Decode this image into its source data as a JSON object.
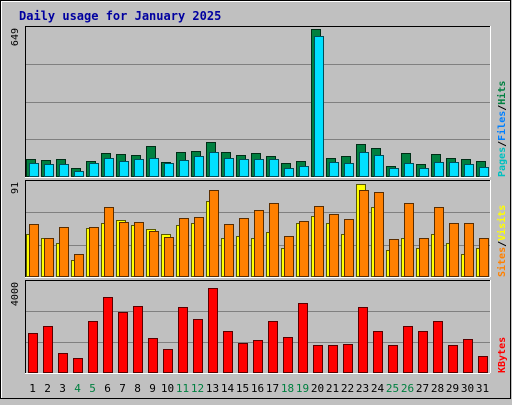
{
  "title": "Daily usage for January 2025",
  "colors": {
    "background": "#c0c0c0",
    "plot_bg": "#c0c0c0",
    "title": "#0000a0",
    "hits": "#008040",
    "files": "#00e0ff",
    "pages": "#00c0c0",
    "visits": "#ff8000",
    "sites": "#ffff00",
    "kbytes": "#ff0000",
    "grid": "#808080",
    "weekend_label": "#008040",
    "day_label": "#000000"
  },
  "panels": [
    {
      "id": "top",
      "ymax_label": "649",
      "legend": [
        {
          "text": "Hits",
          "color": "#008040"
        },
        {
          "text": "/",
          "color": "#000000"
        },
        {
          "text": "Files",
          "color": "#0080ff"
        },
        {
          "text": "/",
          "color": "#000000"
        },
        {
          "text": "Pages",
          "color": "#00c0c0"
        }
      ]
    },
    {
      "id": "middle",
      "ymax_label": "91",
      "legend": [
        {
          "text": "Visits",
          "color": "#ffff00"
        },
        {
          "text": "/",
          "color": "#000000"
        },
        {
          "text": "Sites",
          "color": "#ff8000"
        }
      ]
    },
    {
      "id": "bottom",
      "ymax_label": "4000",
      "legend": [
        {
          "text": "KBytes",
          "color": "#ff0000"
        }
      ]
    }
  ],
  "chart_data": [
    {
      "type": "bar",
      "title": "Daily usage for January 2025",
      "ylim": [
        0,
        649
      ],
      "categories": [
        "1",
        "2",
        "3",
        "4",
        "5",
        "6",
        "7",
        "8",
        "9",
        "10",
        "11",
        "12",
        "13",
        "14",
        "15",
        "16",
        "17",
        "18",
        "19",
        "20",
        "21",
        "22",
        "23",
        "24",
        "25",
        "26",
        "27",
        "28",
        "29",
        "30",
        "31"
      ],
      "weekend_days": [
        "4",
        "5",
        "11",
        "12",
        "18",
        "19",
        "25",
        "26"
      ],
      "series": [
        {
          "name": "Hits",
          "color": "#008040",
          "values": [
            80,
            75,
            78,
            40,
            72,
            105,
            100,
            95,
            136,
            65,
            108,
            112,
            155,
            110,
            95,
            105,
            92,
            60,
            72,
            649,
            85,
            90,
            145,
            125,
            48,
            105,
            55,
            100,
            85,
            78,
            72
          ]
        },
        {
          "name": "Files",
          "color": "#00e0ff",
          "values": [
            62,
            55,
            55,
            28,
            60,
            82,
            70,
            80,
            82,
            62,
            75,
            90,
            110,
            85,
            80,
            80,
            80,
            40,
            50,
            620,
            65,
            60,
            110,
            95,
            40,
            60,
            40,
            65,
            65,
            55,
            45
          ]
        }
      ]
    },
    {
      "type": "bar",
      "ylim": [
        0,
        91
      ],
      "categories": [
        "1",
        "2",
        "3",
        "4",
        "5",
        "6",
        "7",
        "8",
        "9",
        "10",
        "11",
        "12",
        "13",
        "14",
        "15",
        "16",
        "17",
        "18",
        "19",
        "20",
        "21",
        "22",
        "23",
        "24",
        "25",
        "26",
        "27",
        "28",
        "29",
        "30",
        "31"
      ],
      "series": [
        {
          "name": "Visits",
          "color": "#ffff00",
          "values": [
            42,
            38,
            33,
            16,
            47,
            52,
            55,
            50,
            46,
            42,
            50,
            52,
            74,
            38,
            40,
            38,
            44,
            28,
            52,
            59,
            52,
            42,
            90,
            68,
            26,
            38,
            28,
            42,
            33,
            22,
            28
          ]
        },
        {
          "name": "Sites",
          "color": "#ff8000",
          "values": [
            51,
            38,
            48,
            22,
            48,
            68,
            53,
            53,
            45,
            39,
            57,
            58,
            84,
            51,
            57,
            65,
            72,
            40,
            54,
            69,
            61,
            56,
            84,
            82,
            37,
            72,
            38,
            68,
            52,
            52,
            38
          ]
        }
      ]
    },
    {
      "type": "bar",
      "ylim": [
        0,
        4000
      ],
      "categories": [
        "1",
        "2",
        "3",
        "4",
        "5",
        "6",
        "7",
        "8",
        "9",
        "10",
        "11",
        "12",
        "13",
        "14",
        "15",
        "16",
        "17",
        "18",
        "19",
        "20",
        "21",
        "22",
        "23",
        "24",
        "25",
        "26",
        "27",
        "28",
        "29",
        "30",
        "31"
      ],
      "series": [
        {
          "name": "KBytes",
          "color": "#ff0000",
          "values": [
            1800,
            2100,
            900,
            650,
            2300,
            3400,
            2700,
            3000,
            1550,
            1050,
            2950,
            2400,
            3800,
            1850,
            1350,
            1450,
            2300,
            1600,
            3100,
            1250,
            1250,
            1300,
            2950,
            1850,
            1250,
            2100,
            1850,
            2300,
            1250,
            1500,
            750
          ]
        }
      ]
    }
  ]
}
